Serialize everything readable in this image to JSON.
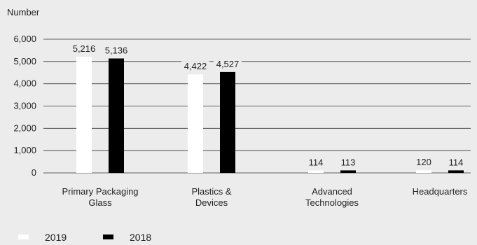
{
  "chart_data": {
    "type": "bar",
    "ylabel": "Number",
    "ylim": [
      0,
      6000
    ],
    "yticks": [
      "0",
      "1,000",
      "2,000",
      "3,000",
      "4,000",
      "5,000",
      "6,000"
    ],
    "ytick_values": [
      0,
      1000,
      2000,
      3000,
      4000,
      5000,
      6000
    ],
    "categories": [
      [
        "Primary Packaging",
        "Glass"
      ],
      [
        "Plastics &",
        "Devices"
      ],
      [
        "Advanced",
        "Technologies"
      ],
      [
        "Headquarters"
      ]
    ],
    "series": [
      {
        "name": "2019",
        "color": "#ffffff",
        "values": [
          5216,
          4422,
          114,
          120
        ],
        "labels": [
          "5,216",
          "4,422",
          "114",
          "120"
        ]
      },
      {
        "name": "2018",
        "color": "#000000",
        "values": [
          5136,
          4527,
          113,
          114
        ],
        "labels": [
          "5,136",
          "4,527",
          "113",
          "114"
        ]
      }
    ],
    "grid": true,
    "legend": "bottom-left"
  }
}
